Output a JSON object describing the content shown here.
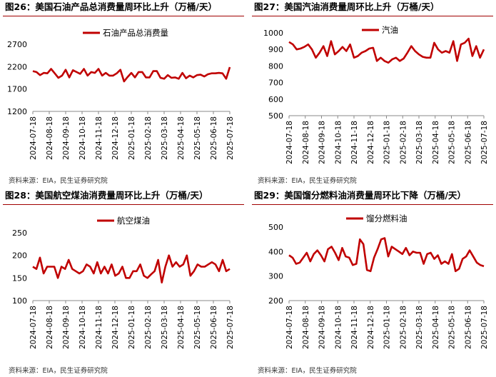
{
  "panels": [
    {
      "title": "图26：美国石油产品总消费量周环比上升（万桶/天）",
      "source": "资料来源：EIA，民生证券研究院"
    },
    {
      "title": "图27：美国汽油消费量周环比上升（万桶/天）",
      "source": "资料来源：EIA，民生证券研究院"
    },
    {
      "title": "图28：美国航空煤油消费量周环比上升（万桶/天）",
      "source": "资料来源：EIA，民生证券研究院"
    },
    {
      "title": "图29：美国馏分燃料油消费量周环比下降（万桶/天）",
      "source": "资料来源：EIA，民生证券研究院"
    }
  ],
  "chart_data": [
    {
      "type": "line",
      "series_name": "石油产品总消费量",
      "color": "#c00000",
      "ylim": [
        1200,
        2700
      ],
      "yticks": [
        1200,
        1700,
        2200,
        2700
      ],
      "x_ticks": [
        "2024-07-18",
        "2024-08-18",
        "2024-09-18",
        "2024-10-18",
        "2024-11-18",
        "2024-12-18",
        "2025-01-18",
        "2025-02-18",
        "2025-03-18",
        "2025-04-18",
        "2025-05-18",
        "2025-06-18",
        "2025-07-18"
      ],
      "values": [
        2100,
        2080,
        2010,
        2060,
        2050,
        2150,
        2050,
        1950,
        2000,
        2130,
        1960,
        2120,
        2080,
        2040,
        2150,
        2000,
        2080,
        2060,
        2150,
        2000,
        2060,
        2000,
        2000,
        2050,
        2130,
        1870,
        1970,
        2060,
        1960,
        2080,
        2080,
        1960,
        1960,
        2100,
        2100,
        1950,
        1930,
        2010,
        1950,
        1960,
        1930,
        2060,
        1940,
        2000,
        1960,
        2010,
        2020,
        1980,
        2030,
        2050,
        2050,
        2060,
        2050,
        1930,
        2190
      ]
    },
    {
      "type": "line",
      "series_name": "汽油",
      "color": "#c00000",
      "ylim": [
        500,
        1000
      ],
      "yticks": [
        500,
        600,
        700,
        800,
        900,
        1000
      ],
      "x_ticks": [
        "2024-07-18",
        "2024-08-18",
        "2024-09-18",
        "2024-10-18",
        "2024-11-18",
        "2024-12-18",
        "2025-01-18",
        "2025-02-18",
        "2025-03-18",
        "2025-04-18",
        "2025-05-18",
        "2025-06-18",
        "2025-07-18"
      ],
      "values": [
        945,
        930,
        900,
        905,
        915,
        930,
        900,
        850,
        880,
        920,
        860,
        950,
        870,
        890,
        915,
        890,
        930,
        850,
        860,
        880,
        890,
        905,
        910,
        830,
        850,
        830,
        820,
        840,
        850,
        830,
        845,
        880,
        920,
        890,
        870,
        855,
        850,
        850,
        940,
        900,
        880,
        890,
        880,
        950,
        830,
        930,
        940,
        965,
        860,
        920,
        850,
        900
      ]
    },
    {
      "type": "line",
      "series_name": "航空煤油",
      "color": "#c00000",
      "ylim": [
        100,
        250
      ],
      "yticks": [
        100,
        150,
        200,
        250
      ],
      "x_ticks": [
        "2024-07-18",
        "2024-08-18",
        "2024-09-18",
        "2024-10-18",
        "2024-11-18",
        "2024-12-18",
        "2025-01-18",
        "2025-02-18",
        "2025-03-18",
        "2025-04-18",
        "2025-05-18",
        "2025-06-18",
        "2025-07-18"
      ],
      "values": [
        175,
        170,
        195,
        160,
        175,
        175,
        175,
        150,
        175,
        170,
        190,
        170,
        165,
        160,
        165,
        180,
        175,
        160,
        185,
        160,
        175,
        160,
        180,
        155,
        160,
        175,
        150,
        150,
        165,
        165,
        180,
        155,
        150,
        158,
        165,
        190,
        140,
        175,
        200,
        175,
        185,
        175,
        180,
        200,
        155,
        165,
        180,
        175,
        175,
        180,
        185,
        180,
        165,
        190,
        165,
        170
      ]
    },
    {
      "type": "line",
      "series_name": "馏分燃料油",
      "color": "#c00000",
      "ylim": [
        200,
        500
      ],
      "yticks": [
        200,
        300,
        400,
        500
      ],
      "x_ticks": [
        "2024-07-18",
        "2024-08-18",
        "2024-09-18",
        "2024-10-18",
        "2024-11-18",
        "2024-12-18",
        "2025-01-18",
        "2025-02-18",
        "2025-03-18",
        "2025-04-18",
        "2025-05-18",
        "2025-06-18",
        "2025-07-18"
      ],
      "values": [
        385,
        375,
        350,
        355,
        375,
        395,
        360,
        390,
        405,
        385,
        360,
        410,
        420,
        395,
        365,
        415,
        380,
        375,
        345,
        350,
        450,
        430,
        325,
        320,
        375,
        410,
        450,
        455,
        380,
        420,
        410,
        400,
        390,
        415,
        385,
        400,
        395,
        395,
        350,
        390,
        395,
        370,
        385,
        350,
        360,
        350,
        390,
        320,
        330,
        370,
        380,
        405,
        380,
        355,
        345,
        340
      ]
    }
  ]
}
